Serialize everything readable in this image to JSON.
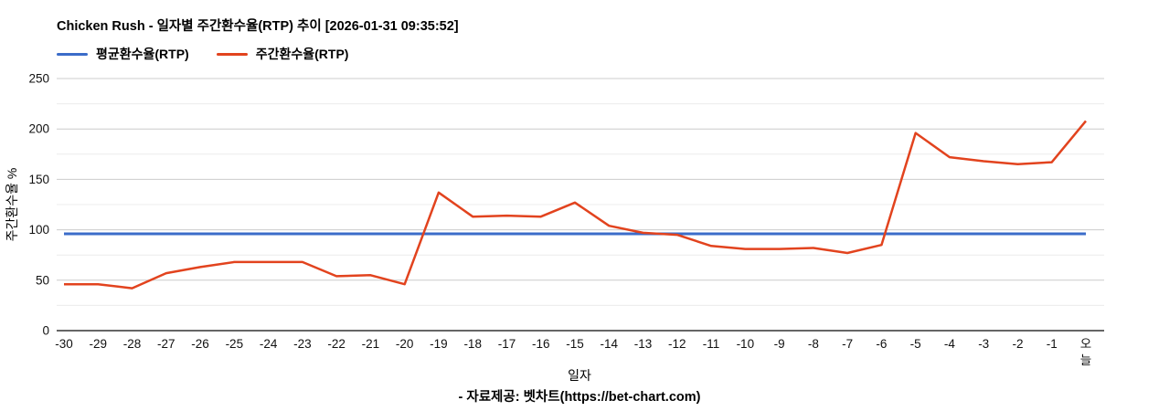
{
  "chart_data": {
    "type": "line",
    "title": "Chicken Rush - 일자별 주간환수율(RTP) 추이 [2026-01-31 09:35:52]",
    "xlabel": "일자",
    "ylabel": "주간환수율 %",
    "categories": [
      "-30",
      "-29",
      "-28",
      "-27",
      "-26",
      "-25",
      "-24",
      "-23",
      "-22",
      "-21",
      "-20",
      "-19",
      "-18",
      "-17",
      "-16",
      "-15",
      "-14",
      "-13",
      "-12",
      "-11",
      "-10",
      "-9",
      "-8",
      "-7",
      "-6",
      "-5",
      "-4",
      "-3",
      "-2",
      "-1",
      "오늘"
    ],
    "series": [
      {
        "name": "평균환수율(RTP)",
        "color": "#3b6cc9",
        "style": "constant",
        "values": [
          96,
          96,
          96,
          96,
          96,
          96,
          96,
          96,
          96,
          96,
          96,
          96,
          96,
          96,
          96,
          96,
          96,
          96,
          96,
          96,
          96,
          96,
          96,
          96,
          96,
          96,
          96,
          96,
          96,
          96,
          96
        ]
      },
      {
        "name": "주간환수율(RTP)",
        "color": "#e2431e",
        "style": "line",
        "values": [
          46,
          46,
          42,
          57,
          63,
          68,
          68,
          68,
          54,
          55,
          46,
          137,
          113,
          114,
          113,
          127,
          104,
          97,
          95,
          84,
          81,
          81,
          82,
          77,
          85,
          196,
          172,
          168,
          165,
          167,
          208
        ]
      }
    ],
    "ylim": [
      0,
      250
    ],
    "yticks": [
      0,
      50,
      100,
      150,
      200,
      250
    ],
    "minor_grid_step": 25,
    "grid": true,
    "legend_position": "top-left"
  },
  "footer": {
    "source": "- 자료제공: 벳차트(https://bet-chart.com)"
  },
  "colors": {
    "major_grid": "#cccccc",
    "minor_grid": "#ececec",
    "axis_line": "#333333",
    "tick_text": "#111111"
  }
}
